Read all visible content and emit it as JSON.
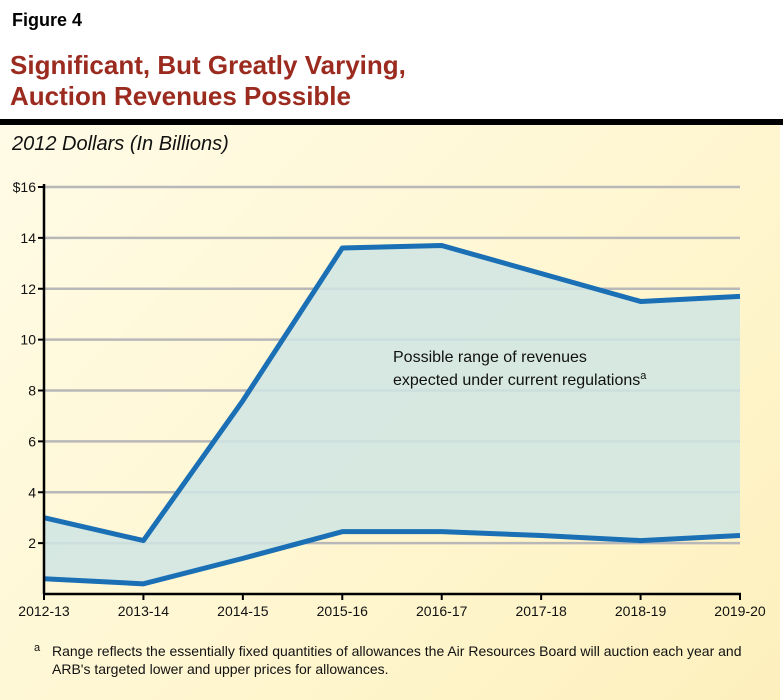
{
  "figure_label": "Figure 4",
  "title_line1": "Significant, But Greatly Varying,",
  "title_line2": "Auction Revenues Possible",
  "footnote_marker": "a",
  "footnote": "Range reflects the essentially fixed quantities of allowances the Air Resources Board will auction each year and ARB's targeted lower and upper prices for allowances.",
  "colors": {
    "title": "#9b2a1f",
    "line": "#1a6fb5",
    "fill": "#cfe5e3",
    "grid": "#b8b8b8"
  },
  "chart_data": {
    "type": "area",
    "title": "Significant, But Greatly Varying, Auction Revenues Possible",
    "ylabel": "2012 Dollars (In Billions)",
    "xlabel": "",
    "categories": [
      "2012-13",
      "2013-14",
      "2014-15",
      "2015-16",
      "2016-17",
      "2017-18",
      "2018-19",
      "2019-20"
    ],
    "series": [
      {
        "role": "upper",
        "values": [
          3.0,
          2.1,
          7.6,
          13.6,
          13.7,
          12.6,
          11.5,
          11.7
        ]
      },
      {
        "role": "lower",
        "values": [
          0.6,
          0.4,
          1.4,
          2.45,
          2.45,
          2.3,
          2.1,
          2.3
        ]
      }
    ],
    "ylim": [
      0,
      16
    ],
    "yticks": [
      2,
      4,
      6,
      8,
      10,
      12,
      14,
      16
    ],
    "ytick_labels": [
      "2",
      "4",
      "6",
      "8",
      "10",
      "12",
      "14",
      "$16"
    ],
    "grid": true,
    "annotation_line1": "Possible range of revenues",
    "annotation_line2": "expected under current regulations",
    "annotation_sup": "a"
  }
}
